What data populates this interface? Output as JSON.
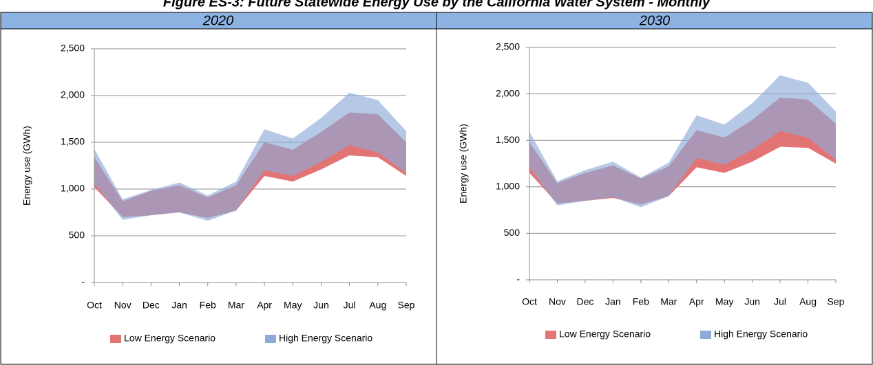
{
  "figure_title": "Figure ES-3: Future Statewide Energy Use by the California Water System - Monthly",
  "chart_data": [
    {
      "type": "band",
      "title": "2020",
      "ylabel": "Energy use (GWh)",
      "categories": [
        "Oct",
        "Nov",
        "Dec",
        "Jan",
        "Feb",
        "Mar",
        "Apr",
        "May",
        "Jun",
        "Jul",
        "Aug",
        "Sep"
      ],
      "series": [
        {
          "name": "Low Energy Scenario",
          "color": "#e37474",
          "lower": [
            1020,
            700,
            720,
            750,
            690,
            770,
            1140,
            1080,
            1210,
            1360,
            1340,
            1140
          ],
          "upper": [
            1340,
            870,
            980,
            1040,
            910,
            1040,
            1500,
            1420,
            1610,
            1820,
            1800,
            1500
          ]
        },
        {
          "name": "High Energy Scenario",
          "color": "#8eaad8",
          "lower": [
            1060,
            670,
            720,
            750,
            660,
            770,
            1200,
            1140,
            1290,
            1470,
            1390,
            1170
          ],
          "upper": [
            1430,
            890,
            990,
            1070,
            930,
            1080,
            1640,
            1540,
            1760,
            2030,
            1950,
            1620
          ]
        }
      ],
      "ylim": [
        0,
        2500
      ],
      "yticks": [
        {
          "value": 0,
          "label": "-"
        },
        500,
        {
          "value": 1000,
          "label": "1,000"
        },
        {
          "value": 1500,
          "label": "1,500"
        },
        {
          "value": 2000,
          "label": "2,000"
        },
        {
          "value": 2500,
          "label": "2,500"
        }
      ],
      "grid": true
    },
    {
      "type": "band",
      "title": "2030",
      "ylabel": "Energy use (GWh)",
      "categories": [
        "Oct",
        "Nov",
        "Dec",
        "Jan",
        "Feb",
        "Mar",
        "Apr",
        "May",
        "Jun",
        "Jul",
        "Aug",
        "Sep"
      ],
      "series": [
        {
          "name": "Low Energy Scenario",
          "color": "#e37474",
          "lower": [
            1150,
            820,
            850,
            880,
            810,
            900,
            1210,
            1150,
            1270,
            1430,
            1420,
            1250
          ],
          "upper": [
            1480,
            1040,
            1150,
            1230,
            1090,
            1220,
            1610,
            1530,
            1720,
            1960,
            1940,
            1680
          ]
        },
        {
          "name": "High Energy Scenario",
          "color": "#8eaad8",
          "lower": [
            1210,
            800,
            850,
            890,
            780,
            900,
            1310,
            1240,
            1400,
            1600,
            1530,
            1290
          ],
          "upper": [
            1590,
            1060,
            1180,
            1270,
            1100,
            1260,
            1770,
            1670,
            1900,
            2200,
            2120,
            1810
          ]
        }
      ],
      "ylim": [
        0,
        2500
      ],
      "yticks": [
        {
          "value": 0,
          "label": "-"
        },
        500,
        {
          "value": 1000,
          "label": "1,000"
        },
        {
          "value": 1500,
          "label": "1,500"
        },
        {
          "value": 2000,
          "label": "2,000"
        },
        {
          "value": 2500,
          "label": "2,500"
        }
      ],
      "grid": true
    }
  ]
}
